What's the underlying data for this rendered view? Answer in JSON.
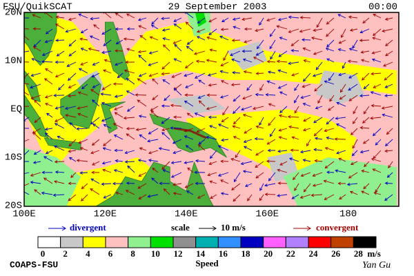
{
  "header": {
    "left": "FSU/QuikSCAT",
    "center": "29 September 2003",
    "right": "00:00"
  },
  "map": {
    "lat_labels": [
      "20N",
      "10N",
      "EQ",
      "10S",
      "20S"
    ],
    "lon_labels": [
      "100E",
      "120E",
      "140E",
      "160E",
      "180"
    ]
  },
  "legend": {
    "divergent": "divergent",
    "scale": "scale",
    "scale_value": "10 m/s",
    "convergent": "convergent"
  },
  "colorbar": {
    "ticks": [
      0,
      2,
      4,
      6,
      8,
      10,
      12,
      14,
      16,
      18,
      20,
      22,
      24,
      26,
      28
    ],
    "unit": "m/s",
    "title": "Speed",
    "colors": [
      "#ffffff",
      "#c8c8c8",
      "#ffff00",
      "#ffc0c0",
      "#90f090",
      "#00e000",
      "#909090",
      "#00b0b0",
      "#3090ff",
      "#0000c0",
      "#ff60ff",
      "#b080ff",
      "#ff0000",
      "#c04000",
      "#000000"
    ]
  },
  "footer": {
    "left": "COAPS-FSU",
    "right": "Yan Gu"
  }
}
